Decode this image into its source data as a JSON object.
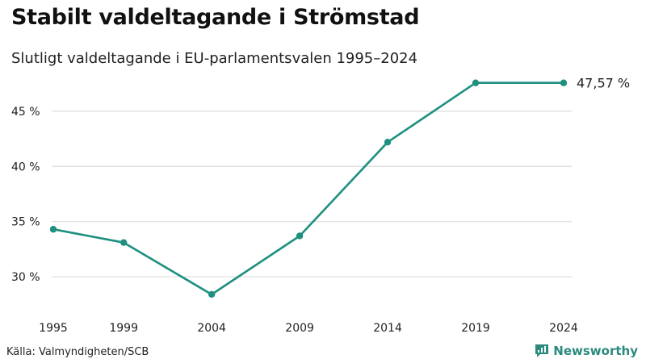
{
  "title": "Stabilt valdeltagande i Strömstad",
  "subtitle": "Slutligt valdeltagande i EU-parlamentsvalen 1995–2024",
  "source": "Källa: Valmyndigheten/SCB",
  "brand": {
    "name": "Newsworthy",
    "icon": "newsworthy-logo-icon",
    "color": "#2b8a7e"
  },
  "colors": {
    "line": "#1f9080",
    "grid": "#dddddd",
    "text": "#222222"
  },
  "chart_data": {
    "type": "line",
    "title": "Stabilt valdeltagande i Strömstad",
    "subtitle": "Slutligt valdeltagande i EU-parlamentsvalen 1995–2024",
    "xlabel": "",
    "ylabel": "",
    "categories": [
      "1995",
      "1999",
      "2004",
      "2009",
      "2014",
      "2019",
      "2024"
    ],
    "x": [
      1995,
      1999,
      2004,
      2009,
      2014,
      2019,
      2024
    ],
    "values": [
      34.3,
      33.1,
      28.4,
      33.7,
      42.2,
      47.57,
      47.57
    ],
    "ylim": [
      27.3,
      48.5
    ],
    "yticks": [
      30,
      35,
      40,
      45
    ],
    "ytick_labels": [
      "30 %",
      "35 %",
      "40 %",
      "45 %"
    ],
    "last_value_label": "47,57 %",
    "grid": true
  }
}
